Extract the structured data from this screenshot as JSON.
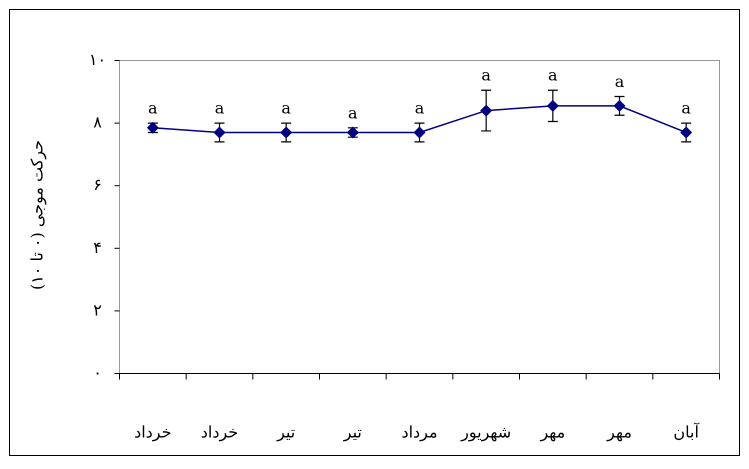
{
  "chart_data": {
    "type": "line",
    "y_label": "حرکت موجی (۰ تا ۱۰)",
    "categories": [
      "خرداد",
      "خرداد",
      "تیر",
      "تیر",
      "مرداد",
      "شهریور",
      "مهر",
      "مهر",
      "آبان"
    ],
    "series": [
      {
        "color": "#000080",
        "values": [
          7.85,
          7.7,
          7.7,
          7.7,
          7.7,
          8.4,
          8.55,
          8.55,
          7.7
        ],
        "errors": [
          0.15,
          0.3,
          0.3,
          0.15,
          0.3,
          0.65,
          0.5,
          0.3,
          0.3
        ],
        "annotations": [
          "a",
          "a",
          "a",
          "a",
          "a",
          "a",
          "a",
          "a",
          "a"
        ]
      }
    ],
    "ylim": [
      0,
      10
    ],
    "yticks": [
      {
        "value": 0,
        "label": "۰"
      },
      {
        "value": 2,
        "label": "۲"
      },
      {
        "value": 4,
        "label": "۴"
      },
      {
        "value": 6,
        "label": "۶"
      },
      {
        "value": 8,
        "label": "۸"
      },
      {
        "value": 10,
        "label": "۱۰"
      }
    ]
  }
}
